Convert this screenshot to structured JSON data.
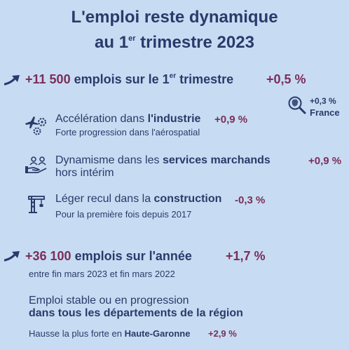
{
  "title": {
    "line1": "L'emploi reste dynamique",
    "line2_pre": "au 1",
    "line2_sup": "er",
    "line2_post": " trimestre 2023"
  },
  "quarter": {
    "value": "+11 500",
    "label_pre": " emplois sur le 1",
    "label_sup": "er",
    "label_post": " trimestre",
    "pct": "+0,5 %"
  },
  "france": {
    "pct": "+0,3 %",
    "label": "France"
  },
  "sectors": [
    {
      "icon": "industry-icon",
      "pre": "Accélération dans ",
      "bold": "l'industrie",
      "pct": "+0,9 %",
      "detail": "Forte progression dans l'aérospatial"
    },
    {
      "icon": "services-icon",
      "pre": "Dynamisme dans les ",
      "bold": "services marchands",
      "line2": "hors intérim",
      "pct": "+0,9 %"
    },
    {
      "icon": "construction-crane-icon",
      "pre": "Léger recul dans la ",
      "bold": "construction",
      "pct": "-0,3 %",
      "detail": "Pour la première fois depuis 2017"
    }
  ],
  "year": {
    "value": "+36 100",
    "label": " emplois sur l'année",
    "pct": "+1,7 %",
    "period": "entre fin mars 2023 et fin mars 2022"
  },
  "regions": {
    "line1": "Emploi stable ou en progression",
    "line2": "dans tous les départements de la région",
    "highest_pre": "Hausse la plus forte en ",
    "highest_dept": "Haute-Garonne",
    "highest_pct": "+2,9 %"
  },
  "colors": {
    "background": "#c7dcf2",
    "navy": "#2b3a6b",
    "plum": "#7b2d5a"
  }
}
